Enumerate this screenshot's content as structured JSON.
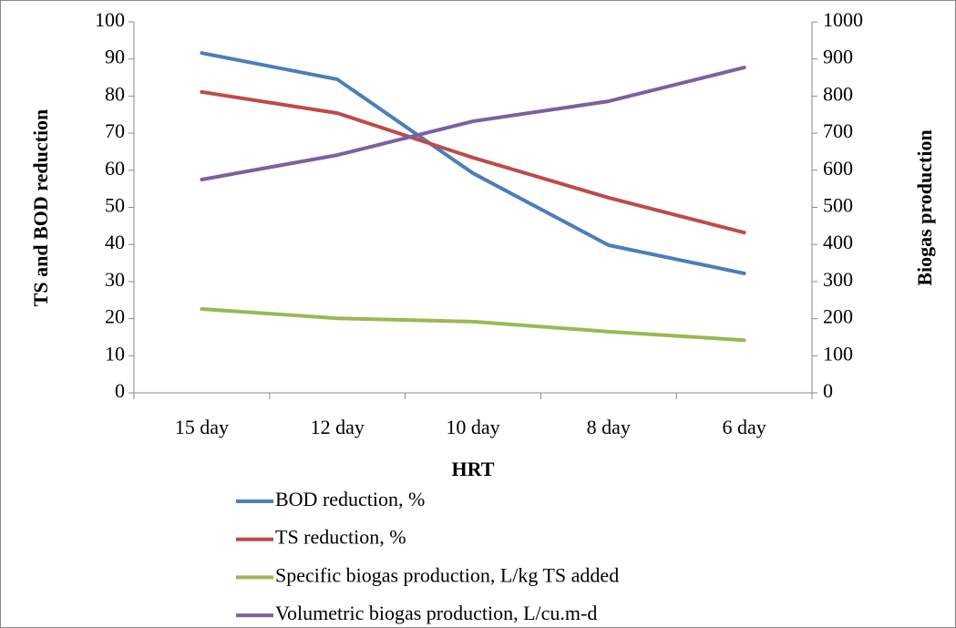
{
  "chart_data": {
    "type": "line",
    "x_label": "HRT",
    "y_label": "TS and BOD reduction",
    "y2_label": "Biogas production",
    "categories": [
      "15 day",
      "12 day",
      "10 day",
      "8 day",
      "6 day"
    ],
    "series": [
      {
        "name": "BOD reduction, %",
        "color": "#4a7ebb",
        "values": [
          91.6,
          84.5,
          59.2,
          39.8,
          32.2
        ]
      },
      {
        "name": "TS reduction, %",
        "color": "#be4b48",
        "values": [
          81.1,
          75.4,
          63.4,
          52.6,
          43.2
        ]
      },
      {
        "name": "Specific biogas production, L/kg TS added",
        "color": "#98b954",
        "axis": "y2",
        "values": [
          226,
          201,
          192,
          165,
          142
        ]
      },
      {
        "name": "Volumetric biogas production, L/cu.m-d",
        "color": "#7d60a0",
        "axis": "y2",
        "values": [
          575,
          641,
          732,
          786,
          877
        ]
      }
    ],
    "ylim": [
      0,
      100
    ],
    "yticks": [
      0,
      10,
      20,
      30,
      40,
      50,
      60,
      70,
      80,
      90,
      100
    ],
    "y2lim": [
      0,
      1000
    ],
    "y2ticks": [
      0,
      100,
      200,
      300,
      400,
      500,
      600,
      700,
      800,
      900,
      1000
    ],
    "legend": "bottom"
  }
}
